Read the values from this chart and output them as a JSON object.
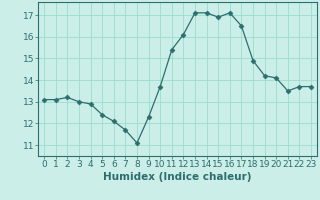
{
  "x": [
    0,
    1,
    2,
    3,
    4,
    5,
    6,
    7,
    8,
    9,
    10,
    11,
    12,
    13,
    14,
    15,
    16,
    17,
    18,
    19,
    20,
    21,
    22,
    23
  ],
  "y": [
    13.1,
    13.1,
    13.2,
    13.0,
    12.9,
    12.4,
    12.1,
    11.7,
    11.1,
    12.3,
    13.7,
    15.4,
    16.1,
    17.1,
    17.1,
    16.9,
    17.1,
    16.5,
    14.9,
    14.2,
    14.1,
    13.5,
    13.7,
    13.7
  ],
  "line_color": "#2d6e6e",
  "marker": "D",
  "marker_size": 2.5,
  "bg_color": "#cceee8",
  "grid_color": "#99ddcc",
  "xlabel": "Humidex (Indice chaleur)",
  "ylim": [
    10.5,
    17.6
  ],
  "yticks": [
    11,
    12,
    13,
    14,
    15,
    16,
    17
  ],
  "xticks": [
    0,
    1,
    2,
    3,
    4,
    5,
    6,
    7,
    8,
    9,
    10,
    11,
    12,
    13,
    14,
    15,
    16,
    17,
    18,
    19,
    20,
    21,
    22,
    23
  ],
  "xlabel_fontsize": 7.5,
  "tick_fontsize": 6.5,
  "tick_color": "#2d6e6e",
  "label_color": "#2d6e6e",
  "spine_color": "#2d6e6e"
}
